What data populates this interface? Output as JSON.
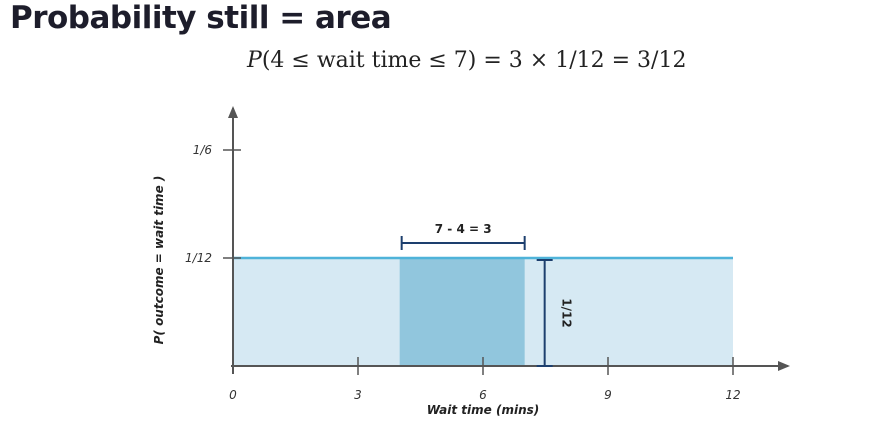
{
  "title": "Probability still = area",
  "formula": {
    "lhs_p": "P",
    "lhs_inner": "(4 ≤ wait time ≤ 7)",
    "rhs": " = 3 × 1/12 = 3/12"
  },
  "chart_data": {
    "type": "area",
    "xlabel": "Wait time (mins)",
    "ylabel": "P( outcome = wait time )",
    "x_ticks": [
      0,
      3,
      6,
      9,
      12
    ],
    "x_tick_labels": [
      "0",
      "3",
      "6",
      "9",
      "12"
    ],
    "y_ticks": [
      0.0833333,
      0.1666667
    ],
    "y_tick_labels": [
      "1/12",
      "1/6"
    ],
    "xlim": [
      0,
      12
    ],
    "ylim": [
      0,
      0.1666667
    ],
    "density": {
      "x_start": 0,
      "x_end": 12,
      "y": 0.0833333
    },
    "highlight": {
      "x_start": 4,
      "x_end": 7
    },
    "width_annotation": "7 - 4 = 3",
    "height_annotation": "1/12",
    "colors": {
      "fill_light": "#d6e9f3",
      "fill_highlight": "#91c6dd",
      "density_line": "#4fb3d9",
      "annotation": "#1d3f6e",
      "axis": "#555555"
    }
  }
}
